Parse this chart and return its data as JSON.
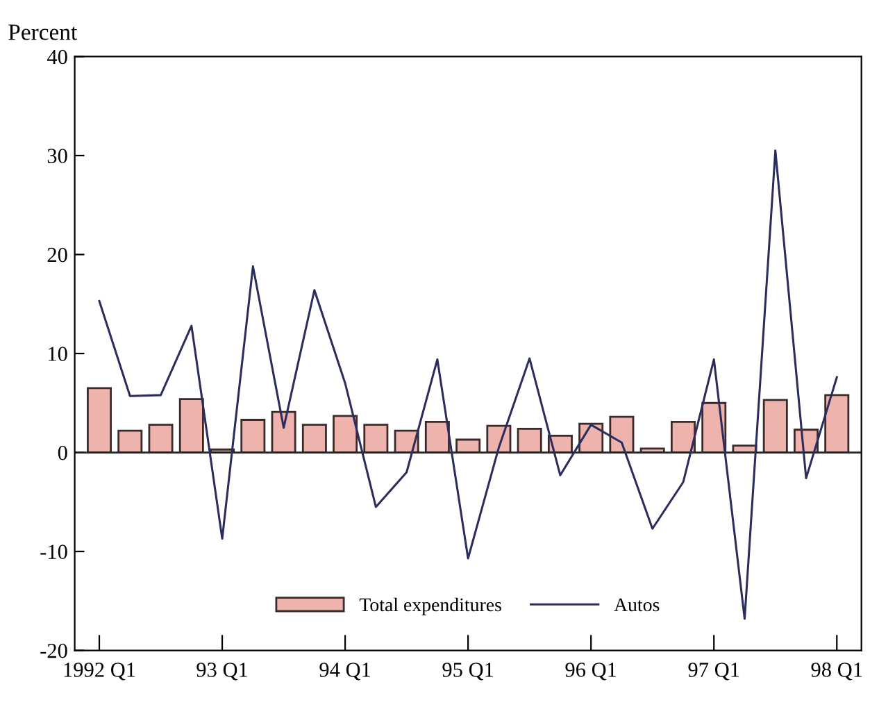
{
  "chart_data": {
    "type": "bar",
    "ylabel": "Percent",
    "categories": [
      "1992 Q1",
      null,
      null,
      null,
      "93 Q1",
      null,
      null,
      null,
      "94 Q1",
      null,
      null,
      null,
      "95 Q1",
      null,
      null,
      null,
      "96 Q1",
      null,
      null,
      null,
      "97 Q1",
      null,
      null,
      null,
      "98 Q1"
    ],
    "series": [
      {
        "name": "Total expenditures",
        "color": "#efb3ad",
        "values": [
          6.5,
          2.2,
          2.8,
          5.4,
          0.3,
          3.3,
          4.1,
          2.8,
          3.7,
          2.8,
          2.2,
          3.1,
          1.3,
          2.7,
          2.4,
          1.7,
          2.9,
          3.6,
          0.4,
          3.1,
          5.0,
          0.7,
          5.3,
          2.3,
          5.8
        ]
      },
      {
        "name": "Autos",
        "type": "line",
        "color": "#2b2e5c",
        "values": [
          15.3,
          5.7,
          5.8,
          12.8,
          -8.7,
          18.8,
          2.5,
          16.4,
          7.0,
          -5.5,
          -2.0,
          9.4,
          -10.7,
          0.5,
          9.5,
          -2.3,
          2.8,
          1.0,
          -7.7,
          -3.0,
          9.4,
          -16.8,
          30.5,
          -2.6,
          7.6
        ]
      }
    ],
    "ylim": [
      -20,
      40
    ],
    "yticks": [
      -20,
      -10,
      0,
      10,
      20,
      30,
      40
    ],
    "grid": false,
    "legend": "bottom",
    "ref_lines": [
      {
        "axis": "y",
        "value": 0,
        "color": "#222222"
      }
    ]
  }
}
